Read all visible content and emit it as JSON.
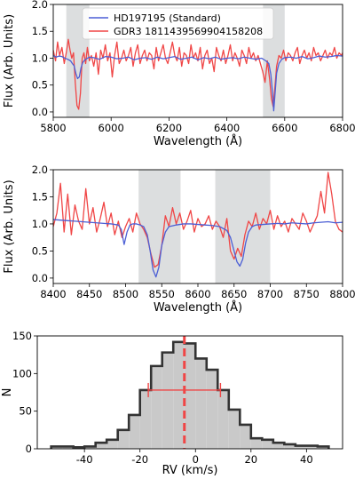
{
  "chart_data": [
    {
      "type": "line",
      "xlabel": "Wavelength (Å)",
      "ylabel": "Flux (Arb. Units)",
      "xlim": [
        5800,
        6800
      ],
      "ylim": [
        -0.1,
        2.0
      ],
      "xticks": [
        5800,
        6000,
        6200,
        6400,
        6600,
        6800
      ],
      "yticks": [
        0.0,
        0.5,
        1.0,
        1.5,
        2.0
      ],
      "shaded_regions": [
        [
          5845,
          5925
        ],
        [
          6525,
          6600
        ]
      ],
      "legend": {
        "placement": "top",
        "entries": [
          "HD197195 (Standard)",
          "GDR3 1811439569904158208"
        ]
      },
      "series": [
        {
          "name": "HD197195 (Standard)",
          "color": "#4c5fd5",
          "x": [
            5800,
            5810,
            5820,
            5830,
            5840,
            5850,
            5860,
            5866,
            5872,
            5878,
            5884,
            5890,
            5896,
            5902,
            5908,
            5915,
            5925,
            5940,
            5960,
            5980,
            6000,
            6020,
            6040,
            6060,
            6080,
            6100,
            6120,
            6140,
            6160,
            6180,
            6200,
            6220,
            6240,
            6260,
            6280,
            6300,
            6320,
            6340,
            6360,
            6380,
            6400,
            6420,
            6440,
            6460,
            6480,
            6500,
            6520,
            6535,
            6545,
            6552,
            6558,
            6562,
            6566,
            6572,
            6580,
            6590,
            6600,
            6620,
            6640,
            6660,
            6680,
            6700,
            6720,
            6740,
            6760,
            6780,
            6800
          ],
          "y": [
            1.05,
            1.02,
            1.04,
            1.03,
            1.0,
            0.98,
            0.95,
            0.9,
            0.86,
            0.72,
            0.62,
            0.65,
            0.82,
            0.92,
            0.96,
            0.99,
            1.02,
            1.01,
            0.98,
            1.03,
            1.02,
            0.99,
            1.0,
            1.02,
            0.97,
            1.0,
            1.01,
            0.98,
            1.02,
            0.99,
            1.01,
            1.03,
            0.98,
            1.0,
            1.02,
            0.97,
            1.01,
            0.99,
            1.02,
            0.98,
            1.0,
            1.01,
            0.99,
            1.02,
            1.0,
            0.98,
            1.0,
            0.95,
            0.9,
            0.7,
            0.35,
            0.02,
            0.3,
            0.72,
            0.9,
            0.98,
            1.01,
            1.02,
            1.0,
            1.03,
            0.99,
            1.01,
            1.04,
            1.02,
            1.03,
            1.05,
            1.04
          ]
        },
        {
          "name": "GDR3 1811439569904158208",
          "color": "#f04646",
          "x": [
            5800,
            5808,
            5815,
            5822,
            5830,
            5838,
            5845,
            5852,
            5858,
            5864,
            5870,
            5876,
            5882,
            5888,
            5894,
            5900,
            5906,
            5912,
            5918,
            5925,
            5932,
            5940,
            5948,
            5956,
            5964,
            5972,
            5980,
            5988,
            5996,
            6004,
            6012,
            6020,
            6028,
            6036,
            6044,
            6052,
            6060,
            6068,
            6076,
            6084,
            6092,
            6100,
            6108,
            6116,
            6124,
            6132,
            6140,
            6148,
            6156,
            6164,
            6172,
            6180,
            6188,
            6196,
            6204,
            6212,
            6220,
            6228,
            6236,
            6244,
            6252,
            6260,
            6268,
            6276,
            6284,
            6292,
            6300,
            6308,
            6316,
            6324,
            6332,
            6340,
            6348,
            6356,
            6364,
            6372,
            6380,
            6388,
            6396,
            6404,
            6412,
            6420,
            6428,
            6436,
            6444,
            6452,
            6460,
            6468,
            6476,
            6484,
            6492,
            6500,
            6508,
            6516,
            6524,
            6532,
            6540,
            6548,
            6554,
            6560,
            6566,
            6572,
            6580,
            6588,
            6596,
            6604,
            6612,
            6620,
            6628,
            6636,
            6644,
            6652,
            6660,
            6668,
            6676,
            6684,
            6692,
            6700,
            6708,
            6716,
            6724,
            6732,
            6740,
            6748,
            6756,
            6764,
            6772,
            6780,
            6788,
            6796,
            6800
          ],
          "y": [
            1.15,
            0.95,
            1.3,
            1.05,
            1.2,
            0.9,
            1.1,
            1.35,
            1.15,
            1.0,
            1.1,
            0.55,
            0.12,
            0.05,
            0.35,
            1.0,
            1.1,
            0.9,
            1.2,
            0.95,
            1.05,
            0.85,
            1.1,
            0.7,
            1.15,
            1.0,
            1.25,
            0.95,
            1.1,
            0.65,
            1.05,
            1.3,
            0.9,
            1.0,
            1.15,
            0.95,
            1.05,
            1.2,
            0.85,
            1.1,
            1.25,
            0.9,
            1.05,
            1.15,
            0.95,
            1.1,
            1.05,
            0.8,
            1.2,
            0.95,
            1.1,
            1.25,
            1.0,
            0.9,
            1.1,
            1.3,
            1.05,
            0.95,
            1.2,
            0.85,
            1.1,
            1.05,
            0.9,
            1.25,
            1.0,
            1.1,
            0.95,
            1.2,
            0.8,
            1.05,
            1.15,
            0.9,
            1.0,
            0.75,
            1.2,
            1.05,
            0.95,
            1.15,
            0.9,
            1.05,
            1.25,
            0.95,
            1.1,
            1.0,
            0.85,
            1.15,
            1.05,
            0.9,
            1.2,
            1.0,
            1.1,
            0.95,
            1.05,
            0.9,
            0.75,
            0.55,
            0.95,
            0.6,
            0.25,
            0.1,
            0.45,
            0.85,
            1.05,
            1.0,
            1.15,
            0.95,
            1.1,
            1.05,
            0.95,
            1.1,
            1.2,
            0.9,
            1.05,
            1.15,
            1.0,
            1.1,
            0.95,
            1.2,
            1.05,
            1.1,
            0.95,
            1.05,
            1.15,
            1.0,
            1.1,
            1.05,
            1.2,
            1.0,
            1.1,
            1.05,
            1.1
          ]
        }
      ]
    },
    {
      "type": "line",
      "xlabel": "Wavelength (Å)",
      "ylabel": "Flux (Arb. Units)",
      "xlim": [
        8400,
        8800
      ],
      "ylim": [
        -0.1,
        2.0
      ],
      "xticks": [
        8400,
        8450,
        8500,
        8550,
        8600,
        8650,
        8700,
        8750,
        8800
      ],
      "yticks": [
        0.0,
        0.5,
        1.0,
        1.5,
        2.0
      ],
      "shaded_regions": [
        [
          8518,
          8576
        ],
        [
          8624,
          8700
        ]
      ],
      "series": [
        {
          "name": "HD197195 (Standard)",
          "color": "#4c5fd5",
          "x": [
            8400,
            8410,
            8420,
            8430,
            8440,
            8450,
            8460,
            8470,
            8480,
            8490,
            8494,
            8498,
            8502,
            8506,
            8510,
            8515,
            8520,
            8525,
            8530,
            8534,
            8538,
            8542,
            8546,
            8550,
            8555,
            8560,
            8570,
            8580,
            8590,
            8600,
            8610,
            8620,
            8630,
            8640,
            8645,
            8650,
            8654,
            8658,
            8662,
            8666,
            8670,
            8675,
            8680,
            8690,
            8700,
            8710,
            8720,
            8730,
            8740,
            8750,
            8760,
            8770,
            8780,
            8790,
            8800
          ],
          "y": [
            1.08,
            1.07,
            1.06,
            1.05,
            1.04,
            1.03,
            1.02,
            1.01,
            1.0,
            0.98,
            0.9,
            0.62,
            0.85,
            0.98,
            1.0,
            1.0,
            0.98,
            0.95,
            0.8,
            0.5,
            0.15,
            0.02,
            0.2,
            0.6,
            0.85,
            0.95,
            0.98,
            1.0,
            1.0,
            0.99,
            0.98,
            0.97,
            0.95,
            0.88,
            0.75,
            0.5,
            0.3,
            0.22,
            0.35,
            0.65,
            0.85,
            0.95,
            0.98,
            0.99,
            1.0,
            1.01,
            1.0,
            1.02,
            1.01,
            1.0,
            1.02,
            1.03,
            1.04,
            1.02,
            1.03
          ]
        },
        {
          "name": "GDR3 1811439569904158208",
          "color": "#f04646",
          "x": [
            8400,
            8405,
            8410,
            8415,
            8420,
            8425,
            8430,
            8435,
            8440,
            8445,
            8450,
            8455,
            8460,
            8465,
            8470,
            8475,
            8480,
            8485,
            8490,
            8495,
            8500,
            8505,
            8510,
            8515,
            8520,
            8525,
            8530,
            8535,
            8540,
            8545,
            8550,
            8555,
            8560,
            8565,
            8570,
            8575,
            8580,
            8585,
            8590,
            8595,
            8600,
            8605,
            8610,
            8615,
            8620,
            8625,
            8630,
            8635,
            8640,
            8645,
            8650,
            8655,
            8660,
            8665,
            8670,
            8675,
            8680,
            8685,
            8690,
            8695,
            8700,
            8705,
            8710,
            8715,
            8720,
            8725,
            8730,
            8735,
            8740,
            8745,
            8750,
            8755,
            8760,
            8765,
            8770,
            8775,
            8780,
            8785,
            8790,
            8795,
            8800
          ],
          "y": [
            0.95,
            1.2,
            1.75,
            0.85,
            1.55,
            0.8,
            1.35,
            1.05,
            0.9,
            1.65,
            1.0,
            1.3,
            0.85,
            1.1,
            1.4,
            0.95,
            1.2,
            0.8,
            1.05,
            0.75,
            0.95,
            1.1,
            0.85,
            1.2,
            1.0,
            0.9,
            0.75,
            0.45,
            0.2,
            0.25,
            0.6,
            1.15,
            0.95,
            1.3,
            1.0,
            1.2,
            0.9,
            1.05,
            1.25,
            0.85,
            1.1,
            0.95,
            1.0,
            1.15,
            0.9,
            1.05,
            0.95,
            0.75,
            1.1,
            0.5,
            0.35,
            0.55,
            0.4,
            0.8,
            1.05,
            0.95,
            1.2,
            0.9,
            1.1,
            1.0,
            1.25,
            0.9,
            1.15,
            0.95,
            1.05,
            0.85,
            1.1,
            1.0,
            0.9,
            1.2,
            1.05,
            0.85,
            1.0,
            1.15,
            1.6,
            1.2,
            1.95,
            1.55,
            1.05,
            0.9,
            0.85
          ]
        }
      ]
    },
    {
      "type": "bar",
      "subtype": "histogram",
      "xlabel": "RV (km/s)",
      "ylabel": "N",
      "xlim": [
        -57,
        53
      ],
      "ylim": [
        0,
        150
      ],
      "xticks": [
        -40,
        -20,
        0,
        20,
        40
      ],
      "yticks": [
        0,
        50,
        100,
        150
      ],
      "bin_edges": [
        -52,
        -48,
        -44,
        -40,
        -36,
        -32,
        -28,
        -24,
        -20,
        -16,
        -12,
        -8,
        -4,
        0,
        4,
        8,
        12,
        16,
        20,
        24,
        28,
        32,
        36,
        40,
        44,
        48
      ],
      "counts": [
        3,
        3,
        2,
        3,
        8,
        12,
        25,
        45,
        78,
        110,
        128,
        142,
        140,
        120,
        105,
        78,
        52,
        32,
        14,
        12,
        8,
        6,
        4,
        4,
        3
      ],
      "mean_line": -4,
      "error_bar": {
        "center": -4,
        "low": -17,
        "high": 9,
        "y": 78
      }
    }
  ]
}
